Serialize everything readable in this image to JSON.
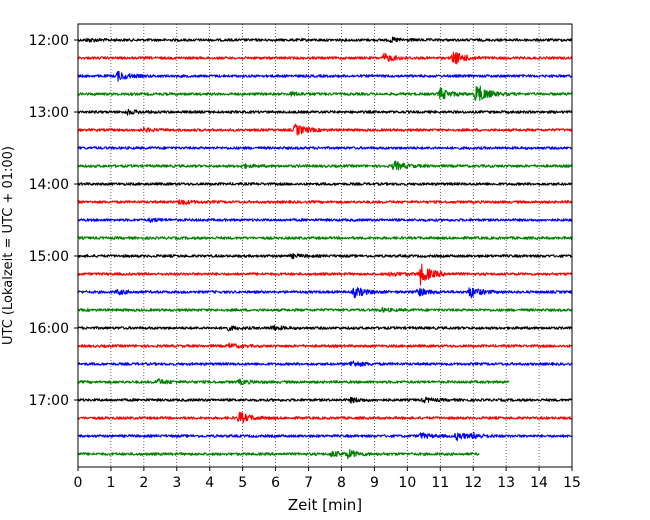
{
  "chart_data": {
    "type": "line",
    "xlabel": "Zeit  [min]",
    "ylabel": "UTC (Lokalzeit = UTC + 01:00)",
    "xlim": [
      0,
      15
    ],
    "x_ticks": [
      "0",
      "1",
      "2",
      "3",
      "4",
      "5",
      "6",
      "7",
      "8",
      "9",
      "10",
      "11",
      "12",
      "13",
      "14",
      "15"
    ],
    "y_ticks": [
      "12:00",
      "13:00",
      "14:00",
      "15:00",
      "16:00",
      "17:00"
    ],
    "grid": "vertical dotted",
    "trace_colors": [
      "#000000",
      "#ff0000",
      "#0000ff",
      "#008000"
    ],
    "traces": [
      {
        "start": "12:00",
        "color": "#000000",
        "end_min": 15,
        "events": [
          [
            0.3,
            3
          ],
          [
            9.5,
            4
          ]
        ]
      },
      {
        "start": "12:15",
        "color": "#ff0000",
        "end_min": 15,
        "events": [
          [
            9.3,
            8
          ],
          [
            11.4,
            14
          ]
        ]
      },
      {
        "start": "12:30",
        "color": "#0000ff",
        "end_min": 15,
        "events": [
          [
            1.2,
            9
          ]
        ]
      },
      {
        "start": "12:45",
        "color": "#008000",
        "end_min": 15,
        "events": [
          [
            11.0,
            11
          ],
          [
            12.1,
            20
          ],
          [
            6.5,
            3
          ]
        ]
      },
      {
        "start": "13:00",
        "color": "#000000",
        "end_min": 15,
        "events": [
          [
            1.5,
            4
          ]
        ]
      },
      {
        "start": "13:15",
        "color": "#ff0000",
        "end_min": 15,
        "events": [
          [
            6.6,
            11
          ],
          [
            2.0,
            3
          ]
        ]
      },
      {
        "start": "13:30",
        "color": "#0000ff",
        "end_min": 15,
        "events": []
      },
      {
        "start": "13:45",
        "color": "#008000",
        "end_min": 15,
        "events": [
          [
            9.6,
            9
          ],
          [
            5.0,
            3
          ]
        ]
      },
      {
        "start": "14:00",
        "color": "#000000",
        "end_min": 15,
        "events": []
      },
      {
        "start": "14:15",
        "color": "#ff0000",
        "end_min": 15,
        "events": [
          [
            3.1,
            5
          ]
        ]
      },
      {
        "start": "14:30",
        "color": "#0000ff",
        "end_min": 15,
        "events": [
          [
            2.2,
            3
          ]
        ]
      },
      {
        "start": "14:45",
        "color": "#008000",
        "end_min": 15,
        "events": []
      },
      {
        "start": "15:00",
        "color": "#000000",
        "end_min": 15,
        "events": [
          [
            6.5,
            3
          ]
        ]
      },
      {
        "start": "15:15",
        "color": "#ff0000",
        "end_min": 15,
        "events": [
          [
            10.4,
            20
          ],
          [
            9.5,
            4
          ]
        ]
      },
      {
        "start": "15:30",
        "color": "#0000ff",
        "end_min": 15,
        "events": [
          [
            8.4,
            10
          ],
          [
            10.3,
            8
          ],
          [
            11.9,
            11
          ],
          [
            1.2,
            4
          ]
        ]
      },
      {
        "start": "15:45",
        "color": "#008000",
        "end_min": 15,
        "events": [
          [
            9.2,
            3
          ]
        ]
      },
      {
        "start": "16:00",
        "color": "#000000",
        "end_min": 15,
        "events": [
          [
            4.5,
            4
          ],
          [
            5.9,
            4
          ]
        ]
      },
      {
        "start": "16:15",
        "color": "#ff0000",
        "end_min": 15,
        "events": [
          [
            4.6,
            4
          ]
        ]
      },
      {
        "start": "16:30",
        "color": "#0000ff",
        "end_min": 15,
        "events": [
          [
            8.3,
            6
          ]
        ]
      },
      {
        "start": "16:45",
        "color": "#008000",
        "end_min": 13.1,
        "events": [
          [
            2.4,
            5
          ],
          [
            4.9,
            4
          ]
        ]
      },
      {
        "start": "17:00",
        "color": "#000000",
        "end_min": 15,
        "events": [
          [
            8.3,
            4
          ],
          [
            10.5,
            4
          ]
        ]
      },
      {
        "start": "17:15",
        "color": "#ff0000",
        "end_min": 15,
        "events": [
          [
            4.9,
            11
          ]
        ]
      },
      {
        "start": "17:30",
        "color": "#0000ff",
        "end_min": 15,
        "events": [
          [
            10.4,
            5
          ],
          [
            11.5,
            7
          ],
          [
            12.0,
            4
          ]
        ]
      },
      {
        "start": "17:45",
        "color": "#008000",
        "end_min": 12.2,
        "events": [
          [
            7.7,
            5
          ],
          [
            8.2,
            7
          ]
        ]
      }
    ]
  }
}
